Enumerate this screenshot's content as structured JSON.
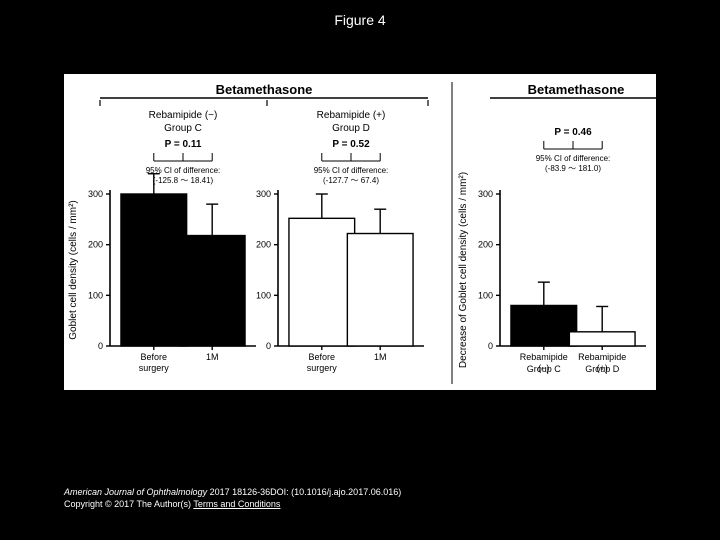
{
  "slide": {
    "title": "Figure 4",
    "bg_color": "#000000",
    "text_color": "#ffffff"
  },
  "figure": {
    "bg_color": "#ffffff",
    "axis_color": "#000000",
    "text_color": "#000000",
    "title_fontsize": 13,
    "label_fontsize": 10,
    "tick_fontsize": 9,
    "small_fontsize": 8,
    "panels": [
      {
        "section_title": "Betamethasone",
        "group_label_top": "Rebamipide (−)",
        "group_label_bot": "Group C",
        "p_label": "P = 0.11",
        "ci_label": "95% CI of difference:",
        "ci_range": "(-125.8 ～ 18.41)",
        "yaxis_label": "Goblet cell density (cells / mm²)",
        "ylim": [
          0,
          300
        ],
        "ytick_step": 100,
        "categories": [
          "Before surgery",
          "1M"
        ],
        "values": [
          300,
          218
        ],
        "errors": [
          40,
          62
        ],
        "bar_colors": [
          "#000000",
          "#000000"
        ],
        "bar_width": 0.45
      },
      {
        "group_label_top": "Rebamipide (+)",
        "group_label_bot": "Group D",
        "p_label": "P = 0.52",
        "ci_label": "95% CI of difference:",
        "ci_range": "(-127.7 ～ 67.4)",
        "ylim": [
          0,
          300
        ],
        "ytick_step": 100,
        "categories": [
          "Before surgery",
          "1M"
        ],
        "values": [
          252,
          222
        ],
        "errors": [
          48,
          48
        ],
        "bar_colors": [
          "#ffffff",
          "#ffffff"
        ],
        "bar_width": 0.45
      },
      {
        "section_title": "Betamethasone",
        "p_label": "P = 0.46",
        "ci_label": "95% CI of difference:",
        "ci_range": "(-83.9 ～ 181.0)",
        "yaxis_label": "Decrease of Goblet cell density (cells / mm²)",
        "ylim": [
          0,
          300
        ],
        "ytick_step": 100,
        "categories": [
          "Rebamipide (−)",
          "Rebamipide (+)"
        ],
        "sub_labels": [
          "Group C",
          "Group D"
        ],
        "values": [
          80,
          28
        ],
        "errors": [
          46,
          50
        ],
        "bar_colors": [
          "#000000",
          "#ffffff"
        ],
        "bar_width": 0.45
      }
    ]
  },
  "footer": {
    "citation_ital": "American Journal of Ophthalmology",
    "citation_rest": " 2017 18126-36DOI: (10.1016/j.ajo.2017.06.016)",
    "copyright_prefix": "Copyright © 2017 The Author(s) ",
    "terms_link": "Terms and Conditions"
  }
}
